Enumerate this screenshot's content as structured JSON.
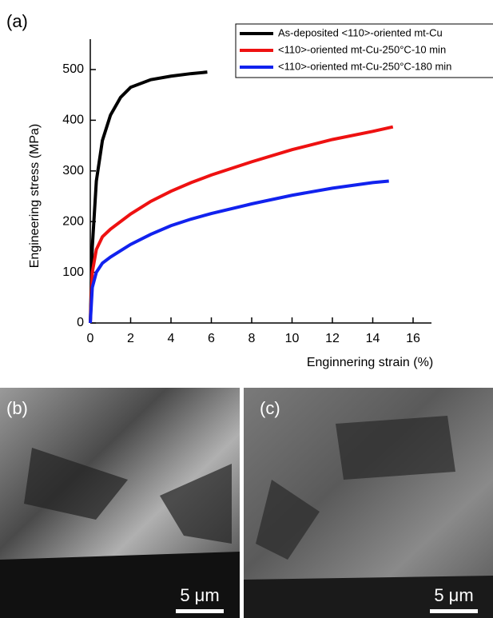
{
  "chart_data": {
    "type": "line",
    "panel_label": "(a)",
    "x_label": "Enginnering strain (%)",
    "y_label": "Engineering stress (MPa)",
    "xlim": [
      0,
      17
    ],
    "ylim": [
      0,
      560
    ],
    "xticks": [
      0,
      2,
      4,
      6,
      8,
      10,
      12,
      14,
      16
    ],
    "yticks": [
      0,
      100,
      200,
      300,
      400,
      500
    ],
    "legend": "upper right",
    "series": [
      {
        "name": "As-deposited <110>-oriented mt-Cu",
        "color": "#000000",
        "x": [
          0,
          0.1,
          0.3,
          0.6,
          1,
          1.5,
          2,
          3,
          4,
          5,
          5.8
        ],
        "values": [
          0,
          150,
          280,
          360,
          410,
          445,
          465,
          480,
          487,
          492,
          495
        ]
      },
      {
        "name": "<110>-oriented mt-Cu-250°C-10 min",
        "color": "#ee1111",
        "x": [
          0,
          0.1,
          0.3,
          0.6,
          1,
          2,
          3,
          4,
          5,
          6,
          8,
          10,
          12,
          14,
          15
        ],
        "values": [
          0,
          100,
          145,
          170,
          185,
          215,
          240,
          260,
          277,
          292,
          318,
          342,
          362,
          378,
          387
        ]
      },
      {
        "name": "<110>-oriented mt-Cu-250°C-180 min",
        "color": "#1122ee",
        "x": [
          0,
          0.1,
          0.3,
          0.6,
          1,
          2,
          3,
          4,
          5,
          6,
          8,
          10,
          12,
          14,
          14.8
        ],
        "values": [
          0,
          70,
          100,
          118,
          130,
          155,
          175,
          192,
          205,
          216,
          235,
          252,
          266,
          277,
          280
        ]
      }
    ]
  },
  "images": [
    {
      "label": "(b)",
      "scale_bar": "5 μm"
    },
    {
      "label": "(c)",
      "scale_bar": "5 μm"
    }
  ]
}
